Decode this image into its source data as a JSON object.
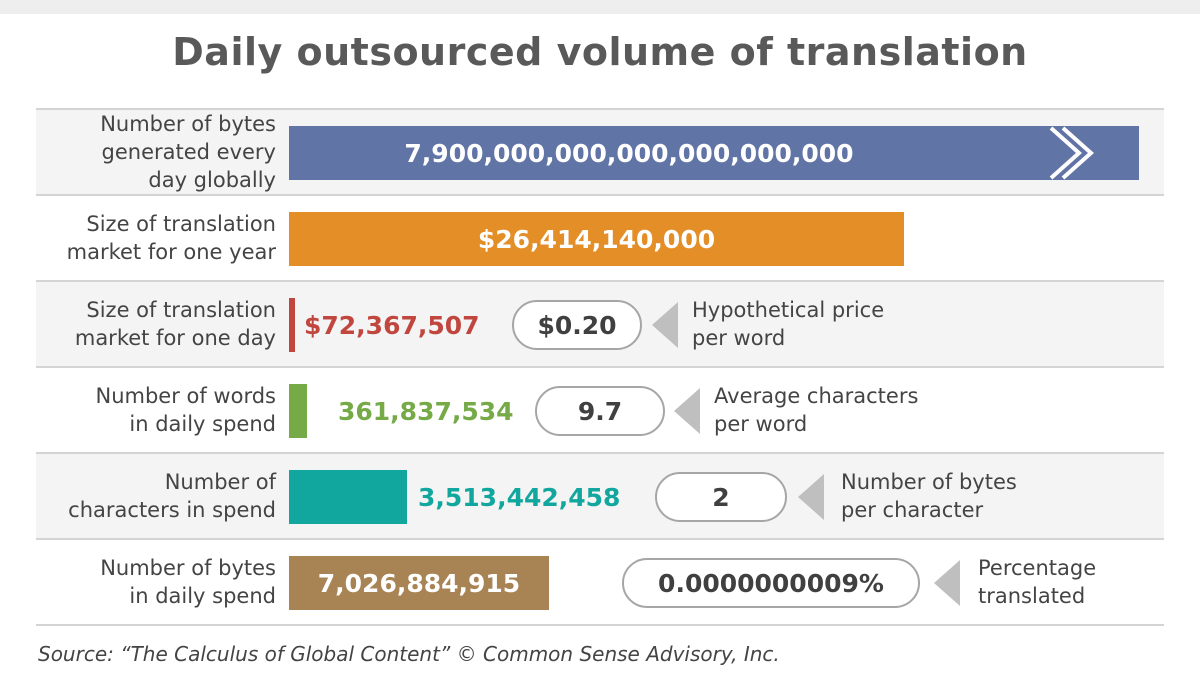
{
  "title": "Daily outsourced volume of translation",
  "source": "Source: “The Calculus of Global Content” © Common Sense Advisory, Inc.",
  "colors": {
    "bytes_global": "#6174a6",
    "market_year": "#e38e27",
    "market_day": "#c0463e",
    "words": "#75aa47",
    "characters": "#12a79e",
    "bytes_daily": "#a88354"
  },
  "rows": [
    {
      "label_lines": [
        "Number of bytes",
        "generated every",
        "day globally"
      ],
      "value": "7,900,000,000,000,000,000,000"
    },
    {
      "label_lines": [
        "Size of translation",
        "market for one year"
      ],
      "value": "$26,414,140,000"
    },
    {
      "label_lines": [
        "Size of translation",
        "market for one day"
      ],
      "value": "$72,367,507",
      "factor": "$0.20",
      "factor_note": [
        "Hypothetical price",
        "per word"
      ]
    },
    {
      "label_lines": [
        "Number of words",
        "in daily spend"
      ],
      "value": "361,837,534",
      "factor": "9.7",
      "factor_note": [
        "Average characters",
        "per word"
      ]
    },
    {
      "label_lines": [
        "Number of",
        "characters in spend"
      ],
      "value": "3,513,442,458",
      "factor": "2",
      "factor_note": [
        "Number of bytes",
        "per character"
      ]
    },
    {
      "label_lines": [
        "Number of bytes",
        "in daily spend"
      ],
      "value": "7,026,884,915",
      "factor": "0.0000000009%",
      "factor_note": [
        "Percentage",
        "translated"
      ]
    }
  ],
  "chart_data": {
    "type": "bar",
    "title": "Daily outsourced volume of translation",
    "categories": [
      "Number of bytes generated every day globally",
      "Size of translation market for one year",
      "Size of translation market for one day",
      "Number of words in daily spend",
      "Number of characters in spend",
      "Number of bytes in daily spend"
    ],
    "values": [
      7.9e+21,
      26414140000,
      72367507,
      361837534,
      3513442458,
      7026884915
    ],
    "value_labels": [
      "7,900,000,000,000,000,000,000",
      "$26,414,140,000",
      "$72,367,507",
      "361,837,534",
      "3,513,442,458",
      "7,026,884,915"
    ],
    "factors": [
      {
        "value": "$0.20",
        "label": "Hypothetical price per word"
      },
      {
        "value": "9.7",
        "label": "Average characters per word"
      },
      {
        "value": "2",
        "label": "Number of bytes per character"
      },
      {
        "value": "0.0000000009%",
        "label": "Percentage translated"
      }
    ]
  }
}
